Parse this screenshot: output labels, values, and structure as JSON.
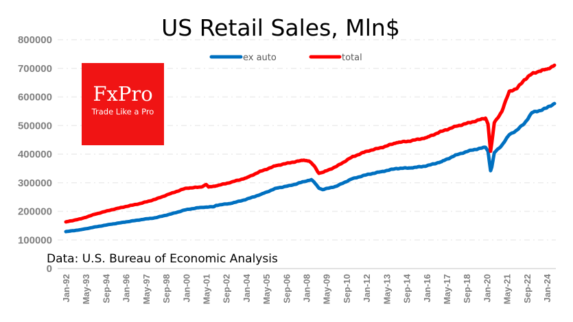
{
  "chart_data": {
    "type": "line",
    "title": "US Retail Sales, Mln$",
    "xlabel": "",
    "ylabel": "",
    "ylim": [
      0,
      800000
    ],
    "yticks": [
      "0",
      "100000",
      "200000",
      "300000",
      "400000",
      "500000",
      "600000",
      "700000",
      "800000"
    ],
    "ytick_values": [
      0,
      100000,
      200000,
      300000,
      400000,
      500000,
      600000,
      700000,
      800000
    ],
    "xticks": [
      "Jan-92",
      "May-93",
      "Sep-94",
      "Jan-96",
      "May-97",
      "Sep-98",
      "Jan-00",
      "May-01",
      "Sep-02",
      "Jan-04",
      "May-05",
      "Sep-06",
      "Jan-08",
      "May-09",
      "Sep-10",
      "Jan-12",
      "May-13",
      "Sep-14",
      "Jan-16",
      "May-17",
      "Sep-18",
      "Jan-20",
      "May-21",
      "Sep-22",
      "Jan-24"
    ],
    "x_unit": "months since Jan-92",
    "xlim": [
      0,
      391
    ],
    "grid": true,
    "legend_position": "top-center",
    "annotation": "Data: U.S. Bureau of Economic Analysis",
    "series": [
      {
        "name": "ex auto",
        "color": "#0070c0",
        "points": [
          [
            0,
            129000
          ],
          [
            12,
            136000
          ],
          [
            24,
            146000
          ],
          [
            36,
            155000
          ],
          [
            48,
            163000
          ],
          [
            60,
            171000
          ],
          [
            72,
            178000
          ],
          [
            84,
            191000
          ],
          [
            96,
            206000
          ],
          [
            108,
            214000
          ],
          [
            118,
            216000
          ],
          [
            120,
            221000
          ],
          [
            132,
            228000
          ],
          [
            144,
            242000
          ],
          [
            156,
            260000
          ],
          [
            168,
            281000
          ],
          [
            180,
            291000
          ],
          [
            190,
            304000
          ],
          [
            196,
            311000
          ],
          [
            198,
            303000
          ],
          [
            202,
            281000
          ],
          [
            205,
            276000
          ],
          [
            216,
            288000
          ],
          [
            228,
            313000
          ],
          [
            240,
            328000
          ],
          [
            252,
            339000
          ],
          [
            264,
            350000
          ],
          [
            276,
            352000
          ],
          [
            288,
            359000
          ],
          [
            300,
            374000
          ],
          [
            312,
            398000
          ],
          [
            324,
            414000
          ],
          [
            335,
            424000
          ],
          [
            337,
            410000
          ],
          [
            339,
            342000
          ],
          [
            340,
            355000
          ],
          [
            342,
            405000
          ],
          [
            348,
            431000
          ],
          [
            354,
            468000
          ],
          [
            360,
            484000
          ],
          [
            366,
            507000
          ],
          [
            372,
            545000
          ],
          [
            378,
            552000
          ],
          [
            384,
            562000
          ],
          [
            390,
            577000
          ]
        ]
      },
      {
        "name": "total",
        "color": "#ff0000",
        "points": [
          [
            0,
            163000
          ],
          [
            12,
            174000
          ],
          [
            24,
            191000
          ],
          [
            36,
            205000
          ],
          [
            48,
            217000
          ],
          [
            60,
            228000
          ],
          [
            72,
            243000
          ],
          [
            84,
            263000
          ],
          [
            96,
            281000
          ],
          [
            108,
            285000
          ],
          [
            112,
            294000
          ],
          [
            114,
            285000
          ],
          [
            120,
            289000
          ],
          [
            132,
            302000
          ],
          [
            144,
            317000
          ],
          [
            156,
            341000
          ],
          [
            168,
            360000
          ],
          [
            180,
            371000
          ],
          [
            190,
            379000
          ],
          [
            194,
            376000
          ],
          [
            198,
            360000
          ],
          [
            202,
            333000
          ],
          [
            206,
            338000
          ],
          [
            216,
            357000
          ],
          [
            228,
            389000
          ],
          [
            240,
            410000
          ],
          [
            252,
            423000
          ],
          [
            264,
            440000
          ],
          [
            276,
            447000
          ],
          [
            288,
            458000
          ],
          [
            300,
            480000
          ],
          [
            312,
            498000
          ],
          [
            324,
            512000
          ],
          [
            335,
            526000
          ],
          [
            337,
            505000
          ],
          [
            339,
            410000
          ],
          [
            340,
            440000
          ],
          [
            342,
            510000
          ],
          [
            348,
            549000
          ],
          [
            354,
            620000
          ],
          [
            360,
            629000
          ],
          [
            366,
            660000
          ],
          [
            372,
            681000
          ],
          [
            378,
            690000
          ],
          [
            384,
            697000
          ],
          [
            390,
            711000
          ]
        ]
      }
    ]
  },
  "logo": {
    "brand": "FxPro",
    "tagline": "Trade Like a Pro",
    "color": "#f01414"
  }
}
